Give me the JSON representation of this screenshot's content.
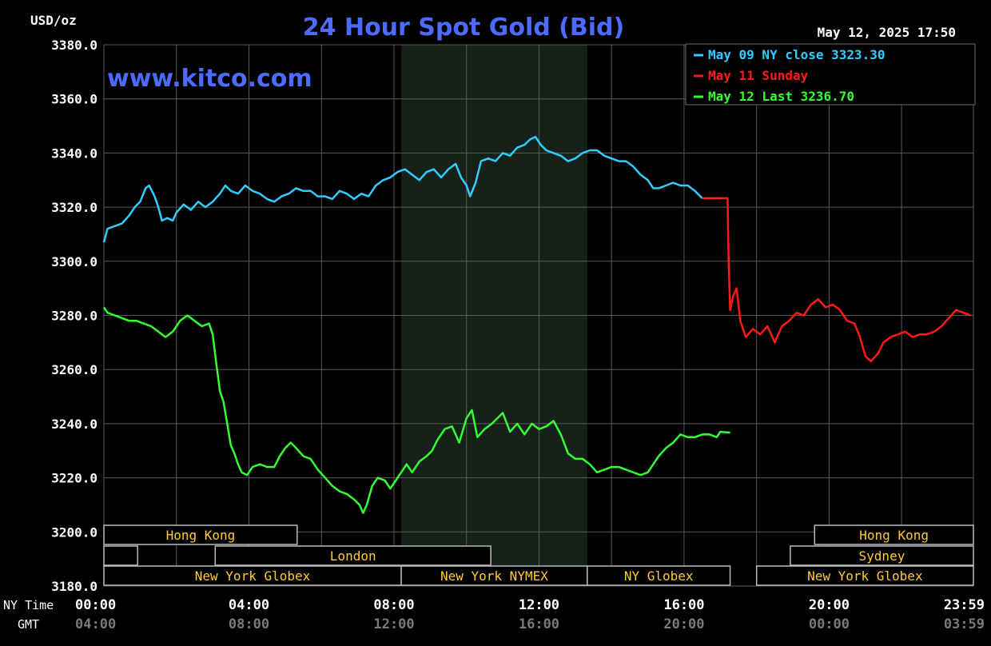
{
  "header": {
    "title": "24 Hour Spot Gold (Bid)",
    "unit": "USD/oz",
    "watermark": "www.kitco.com",
    "timestamp": "May 12, 2025 17:50"
  },
  "legend": {
    "placement": "top-right",
    "entries": [
      {
        "label": "May 09 NY close 3323.30",
        "color": "#33ccff"
      },
      {
        "label": "May 11 Sunday",
        "color": "#ff1a1a"
      },
      {
        "label": "May 12 Last 3236.70",
        "color": "#33ff33"
      }
    ]
  },
  "axis_labels": {
    "ny_time": "NY Time",
    "gmt": "GMT"
  },
  "sessions": [
    {
      "label": "Hong Kong",
      "row": 0,
      "start": 0,
      "end": 5.33
    },
    {
      "label": "",
      "row": 1,
      "start": 0,
      "end": 0.93
    },
    {
      "label": "London",
      "row": 1,
      "start": 3.07,
      "end": 10.67
    },
    {
      "label": "New York Globex",
      "row": 2,
      "start": 0,
      "end": 8.2
    },
    {
      "label": "New York NYMEX",
      "row": 2,
      "start": 8.2,
      "end": 13.33
    },
    {
      "label": "NY Globex",
      "row": 2,
      "start": 13.33,
      "end": 17.27
    },
    {
      "label": "Hong Kong",
      "row": 0,
      "start": 19.6,
      "end": 23.98
    },
    {
      "label": "Sydney",
      "row": 1,
      "start": 18.93,
      "end": 23.98
    },
    {
      "label": "New York Globex",
      "row": 2,
      "start": 18.0,
      "end": 23.98
    }
  ],
  "colors": {
    "background": "#000000",
    "grid": "#5a5a5a",
    "shade": "#16211a",
    "title": "#4d6bff",
    "watermark": "#4d6bff",
    "axis_text": "#ffffff",
    "gmt_text": "#7a7a7a",
    "session_text": "#ffcc33",
    "session_border": "#bbbbbb"
  },
  "chart_data": {
    "type": "line",
    "title": "24 Hour Spot Gold (Bid)",
    "ylabel": "USD/oz",
    "xlabel": "NY Time",
    "x_unit": "hours",
    "xlim": [
      0,
      23.98
    ],
    "ylim": [
      3180,
      3380
    ],
    "yticks": [
      3180,
      3200,
      3220,
      3240,
      3260,
      3280,
      3300,
      3320,
      3340,
      3360,
      3380
    ],
    "ytick_labels": [
      "3180.0",
      "3200.0",
      "3220.0",
      "3240.0",
      "3260.0",
      "3280.0",
      "3300.0",
      "3320.0",
      "3340.0",
      "3360.0",
      "3380.0"
    ],
    "xticks": [
      0,
      4,
      8,
      12,
      16,
      20,
      23.98
    ],
    "xtick_labels": [
      "00:00",
      "04:00",
      "08:00",
      "12:00",
      "16:00",
      "20:00",
      "23:59"
    ],
    "gmt_tick_labels": [
      "04:00",
      "08:00",
      "12:00",
      "16:00",
      "20:00",
      "00:00",
      "03:59"
    ],
    "grid": true,
    "shaded_region": [
      8.2,
      13.33
    ],
    "series": [
      {
        "name": "May 09 NY close 3323.30",
        "color": "#33ccff",
        "points": [
          [
            0,
            3307
          ],
          [
            0.1,
            3312
          ],
          [
            0.3,
            3313
          ],
          [
            0.5,
            3314
          ],
          [
            0.7,
            3317
          ],
          [
            0.85,
            3320
          ],
          [
            1.0,
            3322
          ],
          [
            1.15,
            3327
          ],
          [
            1.25,
            3328
          ],
          [
            1.4,
            3324
          ],
          [
            1.5,
            3320
          ],
          [
            1.6,
            3315
          ],
          [
            1.75,
            3316
          ],
          [
            1.9,
            3315
          ],
          [
            2.0,
            3318
          ],
          [
            2.2,
            3321
          ],
          [
            2.4,
            3319
          ],
          [
            2.6,
            3322
          ],
          [
            2.8,
            3320
          ],
          [
            3.0,
            3322
          ],
          [
            3.2,
            3325
          ],
          [
            3.35,
            3328
          ],
          [
            3.5,
            3326
          ],
          [
            3.7,
            3325
          ],
          [
            3.9,
            3328
          ],
          [
            4.1,
            3326
          ],
          [
            4.3,
            3325
          ],
          [
            4.5,
            3323
          ],
          [
            4.7,
            3322
          ],
          [
            4.9,
            3324
          ],
          [
            5.1,
            3325
          ],
          [
            5.3,
            3327
          ],
          [
            5.5,
            3326
          ],
          [
            5.7,
            3326
          ],
          [
            5.9,
            3324
          ],
          [
            6.1,
            3324
          ],
          [
            6.3,
            3323
          ],
          [
            6.5,
            3326
          ],
          [
            6.7,
            3325
          ],
          [
            6.9,
            3323
          ],
          [
            7.1,
            3325
          ],
          [
            7.3,
            3324
          ],
          [
            7.5,
            3328
          ],
          [
            7.7,
            3330
          ],
          [
            7.9,
            3331
          ],
          [
            8.1,
            3333
          ],
          [
            8.3,
            3334
          ],
          [
            8.5,
            3332
          ],
          [
            8.7,
            3330
          ],
          [
            8.9,
            3333
          ],
          [
            9.1,
            3334
          ],
          [
            9.3,
            3331
          ],
          [
            9.5,
            3334
          ],
          [
            9.7,
            3336
          ],
          [
            9.85,
            3331
          ],
          [
            10.0,
            3328
          ],
          [
            10.1,
            3324
          ],
          [
            10.25,
            3329
          ],
          [
            10.4,
            3337
          ],
          [
            10.6,
            3338
          ],
          [
            10.8,
            3337
          ],
          [
            11.0,
            3340
          ],
          [
            11.2,
            3339
          ],
          [
            11.4,
            3342
          ],
          [
            11.6,
            3343
          ],
          [
            11.75,
            3345
          ],
          [
            11.9,
            3346
          ],
          [
            12.05,
            3343
          ],
          [
            12.2,
            3341
          ],
          [
            12.4,
            3340
          ],
          [
            12.6,
            3339
          ],
          [
            12.8,
            3337
          ],
          [
            13.0,
            3338
          ],
          [
            13.2,
            3340
          ],
          [
            13.4,
            3341
          ],
          [
            13.6,
            3341
          ],
          [
            13.8,
            3339
          ],
          [
            14.0,
            3338
          ],
          [
            14.2,
            3337
          ],
          [
            14.4,
            3337
          ],
          [
            14.6,
            3335
          ],
          [
            14.8,
            3332
          ],
          [
            15.0,
            3330
          ],
          [
            15.15,
            3327
          ],
          [
            15.3,
            3327
          ],
          [
            15.5,
            3328
          ],
          [
            15.7,
            3329
          ],
          [
            15.9,
            3328
          ],
          [
            16.1,
            3328
          ],
          [
            16.3,
            3326
          ],
          [
            16.5,
            3323.3
          ]
        ]
      },
      {
        "name": "May 11 Sunday",
        "color": "#ff1a1a",
        "points": [
          [
            16.5,
            3323.3
          ],
          [
            17.2,
            3323.3
          ],
          [
            17.23,
            3300
          ],
          [
            17.27,
            3282
          ],
          [
            17.35,
            3287
          ],
          [
            17.45,
            3290
          ],
          [
            17.55,
            3278
          ],
          [
            17.7,
            3272
          ],
          [
            17.9,
            3275
          ],
          [
            18.1,
            3273
          ],
          [
            18.3,
            3276
          ],
          [
            18.5,
            3270
          ],
          [
            18.7,
            3276
          ],
          [
            18.9,
            3278
          ],
          [
            19.1,
            3281
          ],
          [
            19.3,
            3280
          ],
          [
            19.5,
            3284
          ],
          [
            19.7,
            3286
          ],
          [
            19.9,
            3283
          ],
          [
            20.1,
            3284
          ],
          [
            20.3,
            3282
          ],
          [
            20.5,
            3278
          ],
          [
            20.7,
            3277
          ],
          [
            20.85,
            3272
          ],
          [
            21.0,
            3265
          ],
          [
            21.15,
            3263
          ],
          [
            21.35,
            3266
          ],
          [
            21.5,
            3270
          ],
          [
            21.7,
            3272
          ],
          [
            21.9,
            3273
          ],
          [
            22.1,
            3274
          ],
          [
            22.3,
            3272
          ],
          [
            22.5,
            3273
          ],
          [
            22.7,
            3273
          ],
          [
            22.9,
            3274
          ],
          [
            23.1,
            3276
          ],
          [
            23.3,
            3279
          ],
          [
            23.5,
            3282
          ],
          [
            23.7,
            3281
          ],
          [
            23.9,
            3280
          ]
        ]
      },
      {
        "name": "May 12 Last 3236.70",
        "color": "#33ff33",
        "points": [
          [
            0,
            3283
          ],
          [
            0.1,
            3281
          ],
          [
            0.3,
            3280
          ],
          [
            0.5,
            3279
          ],
          [
            0.7,
            3278
          ],
          [
            0.9,
            3278
          ],
          [
            1.1,
            3277
          ],
          [
            1.3,
            3276
          ],
          [
            1.5,
            3274
          ],
          [
            1.7,
            3272
          ],
          [
            1.9,
            3274
          ],
          [
            2.1,
            3278
          ],
          [
            2.3,
            3280
          ],
          [
            2.5,
            3278
          ],
          [
            2.7,
            3276
          ],
          [
            2.9,
            3277
          ],
          [
            3.0,
            3273
          ],
          [
            3.1,
            3262
          ],
          [
            3.2,
            3252
          ],
          [
            3.3,
            3248
          ],
          [
            3.4,
            3240
          ],
          [
            3.5,
            3232
          ],
          [
            3.6,
            3229
          ],
          [
            3.7,
            3225
          ],
          [
            3.8,
            3222
          ],
          [
            3.95,
            3221
          ],
          [
            4.1,
            3224
          ],
          [
            4.3,
            3225
          ],
          [
            4.5,
            3224
          ],
          [
            4.7,
            3224
          ],
          [
            4.85,
            3228
          ],
          [
            5.0,
            3231
          ],
          [
            5.15,
            3233
          ],
          [
            5.3,
            3231
          ],
          [
            5.5,
            3228
          ],
          [
            5.7,
            3227
          ],
          [
            5.9,
            3223
          ],
          [
            6.1,
            3220
          ],
          [
            6.3,
            3217
          ],
          [
            6.5,
            3215
          ],
          [
            6.7,
            3214
          ],
          [
            6.9,
            3212
          ],
          [
            7.05,
            3210
          ],
          [
            7.15,
            3207
          ],
          [
            7.25,
            3210
          ],
          [
            7.4,
            3217
          ],
          [
            7.55,
            3220
          ],
          [
            7.75,
            3219
          ],
          [
            7.9,
            3216
          ],
          [
            8.05,
            3219
          ],
          [
            8.2,
            3222
          ],
          [
            8.35,
            3225
          ],
          [
            8.5,
            3222
          ],
          [
            8.7,
            3226
          ],
          [
            8.9,
            3228
          ],
          [
            9.05,
            3230
          ],
          [
            9.2,
            3234
          ],
          [
            9.4,
            3238
          ],
          [
            9.6,
            3239
          ],
          [
            9.8,
            3233
          ],
          [
            10.0,
            3242
          ],
          [
            10.15,
            3245
          ],
          [
            10.3,
            3235
          ],
          [
            10.5,
            3238
          ],
          [
            10.7,
            3240
          ],
          [
            10.85,
            3242
          ],
          [
            11.0,
            3244
          ],
          [
            11.2,
            3237
          ],
          [
            11.4,
            3240
          ],
          [
            11.6,
            3236
          ],
          [
            11.8,
            3240
          ],
          [
            12.0,
            3238
          ],
          [
            12.2,
            3239
          ],
          [
            12.4,
            3241
          ],
          [
            12.6,
            3236
          ],
          [
            12.8,
            3229
          ],
          [
            13.0,
            3227
          ],
          [
            13.2,
            3227
          ],
          [
            13.4,
            3225
          ],
          [
            13.6,
            3222
          ],
          [
            13.8,
            3223
          ],
          [
            14.0,
            3224
          ],
          [
            14.2,
            3224
          ],
          [
            14.4,
            3223
          ],
          [
            14.6,
            3222
          ],
          [
            14.8,
            3221
          ],
          [
            15.0,
            3222
          ],
          [
            15.15,
            3225
          ],
          [
            15.3,
            3228
          ],
          [
            15.5,
            3231
          ],
          [
            15.7,
            3233
          ],
          [
            15.9,
            3236
          ],
          [
            16.1,
            3235
          ],
          [
            16.3,
            3235
          ],
          [
            16.5,
            3236
          ],
          [
            16.7,
            3236
          ],
          [
            16.9,
            3235
          ],
          [
            17.0,
            3237
          ],
          [
            17.27,
            3236.7
          ]
        ]
      }
    ]
  }
}
